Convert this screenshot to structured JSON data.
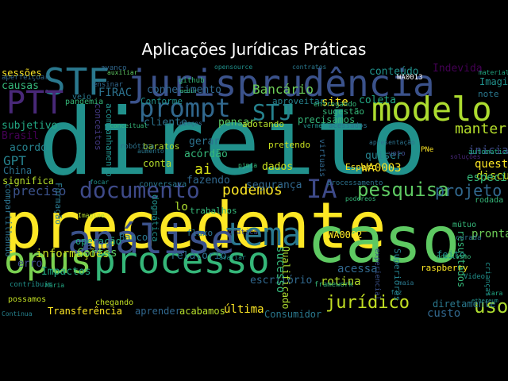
{
  "title": "Aplicações Jurídicas Práticas",
  "words": [
    {
      "text": "direito",
      "color": "#21918c"
    },
    {
      "text": "precedente",
      "color": "#fde725"
    },
    {
      "text": "caso",
      "color": "#5ec962"
    },
    {
      "text": "jurisprudência",
      "color": "#3b528b"
    },
    {
      "text": "modelo",
      "color": "#addc30"
    },
    {
      "text": "processo",
      "color": "#35b779"
    },
    {
      "text": "análise",
      "color": "#3b528b"
    },
    {
      "text": "opus",
      "color": "#7ad151"
    },
    {
      "text": "tema",
      "color": "#2a788e"
    },
    {
      "text": "STF",
      "color": "#2a788e"
    },
    {
      "text": "PTT",
      "color": "#482878"
    },
    {
      "text": "prompt",
      "color": "#31688e"
    },
    {
      "text": "documento",
      "color": "#3e4a89"
    },
    {
      "text": "pesquisa",
      "color": "#5ec962"
    },
    {
      "text": "STJ",
      "color": "#26828e"
    },
    {
      "text": "IA",
      "color": "#3e4a89"
    },
    {
      "text": "projeto",
      "color": "#31688e"
    },
    {
      "text": "jurídico",
      "color": "#c2df23"
    },
    {
      "text": "podemos",
      "color": "#fde725"
    },
    {
      "text": "uso",
      "color": "#addc30"
    },
    {
      "text": "manter",
      "color": "#b5de2b"
    },
    {
      "text": "Bancário",
      "color": "#6ece58"
    },
    {
      "text": "conhecimento",
      "color": "#31688e"
    },
    {
      "text": "GPT",
      "color": "#26828e"
    },
    {
      "text": "preciso",
      "color": "#3b528b"
    },
    {
      "text": "informações",
      "color": "#c8e020"
    },
    {
      "text": "sessões",
      "color": "#fde725"
    },
    {
      "text": "causas",
      "color": "#35b779"
    },
    {
      "text": "subjetivo",
      "color": "#22a884"
    },
    {
      "text": "Brasil",
      "color": "#440154"
    },
    {
      "text": "acordo",
      "color": "#26828e"
    },
    {
      "text": "China",
      "color": "#2c728e"
    },
    {
      "text": "significa",
      "color": "#b5de2b"
    },
    {
      "text": "FIRAC",
      "color": "#2c728e"
    },
    {
      "text": "conceitos",
      "color": "#443983"
    },
    {
      "text": "acompanhamento",
      "color": "#21918c"
    },
    {
      "text": "Cortes",
      "color": "#5ec962"
    },
    {
      "text": "operação",
      "color": "#22a884"
    },
    {
      "text": "alto",
      "color": "#3b528b"
    },
    {
      "text": "Impactos",
      "color": "#22a884"
    },
    {
      "text": "erro",
      "color": "#3e4a89"
    },
    {
      "text": "possamos",
      "color": "#c2df23"
    },
    {
      "text": "Transferência",
      "color": "#fde725"
    },
    {
      "text": "chegando",
      "color": "#c2df23"
    },
    {
      "text": "aprender",
      "color": "#31688e"
    },
    {
      "text": "acabamos",
      "color": "#b5de2b"
    },
    {
      "text": "última",
      "color": "#fde725"
    },
    {
      "text": "Consumidor",
      "color": "#2a788e"
    },
    {
      "text": "relatório",
      "color": "#2c728e"
    },
    {
      "text": "escritório",
      "color": "#31688e"
    },
    {
      "text": "segurança",
      "color": "#31688e"
    },
    {
      "text": "Qualificado",
      "color": "#addc30"
    },
    {
      "text": "sucesso",
      "color": "#35b779"
    },
    {
      "text": "acessa",
      "color": "#31688e"
    },
    {
      "text": "rotina",
      "color": "#b5de2b"
    },
    {
      "text": "WA0002",
      "color": "#fde725"
    },
    {
      "text": "diretamente",
      "color": "#2a788e"
    },
    {
      "text": "custo",
      "color": "#31688e"
    },
    {
      "text": "resultados",
      "color": "#35b779"
    },
    {
      "text": "pronta",
      "color": "#6ece58"
    },
    {
      "text": "feito",
      "color": "#21918c"
    },
    {
      "text": "questões",
      "color": "#fde725"
    },
    {
      "text": "discussão",
      "color": "#c8e020"
    },
    {
      "text": "específico",
      "color": "#35b779"
    },
    {
      "text": "inicial",
      "color": "#3e4a89"
    },
    {
      "text": "WA0003",
      "color": "#fde725"
    },
    {
      "text": "quiser",
      "color": "#26828e"
    },
    {
      "text": "Espero",
      "color": "#fde725"
    },
    {
      "text": "dados",
      "color": "#c8e020"
    },
    {
      "text": "ai",
      "color": "#d8e219"
    },
    {
      "text": "conta",
      "color": "#b5de2b"
    },
    {
      "text": "fazendo",
      "color": "#31688e"
    },
    {
      "text": "gerar",
      "color": "#2c728e"
    },
    {
      "text": "acórdão",
      "color": "#35b779"
    },
    {
      "text": "baratos",
      "color": "#addc30"
    },
    {
      "text": "cliente",
      "color": "#2c728e"
    },
    {
      "text": "pensar",
      "color": "#5ec962"
    },
    {
      "text": "adotando",
      "color": "#b5de2b"
    },
    {
      "text": "pretendo",
      "color": "#c8e020"
    },
    {
      "text": "precisamos",
      "color": "#35b779"
    },
    {
      "text": "sugestão",
      "color": "#35b779"
    },
    {
      "text": "site",
      "color": "#fde725"
    },
    {
      "text": "coleta",
      "color": "#22a884"
    },
    {
      "text": "conteúdo",
      "color": "#21918c"
    },
    {
      "text": "Indevida",
      "color": "#440154"
    },
    {
      "text": "Imagina",
      "color": "#21918c"
    },
    {
      "text": "note",
      "color": "#2a788e"
    },
    {
      "text": "aproveitar",
      "color": "#26828e"
    },
    {
      "text": "Conforme",
      "color": "#21918c"
    },
    {
      "text": "dogmática",
      "color": "#21918c"
    },
    {
      "text": "Banco",
      "color": "#2a788e"
    },
    {
      "text": "fluxo",
      "color": "#2a788e"
    },
    {
      "text": "lo",
      "color": "#addc30"
    },
    {
      "text": "Formação",
      "color": "#2a788e"
    },
    {
      "text": "compartilhando",
      "color": "#2c728e"
    },
    {
      "text": "conversava",
      "color": "#2a788e"
    },
    {
      "text": "WA0013",
      "color": "#ffffff"
    },
    {
      "text": "avanço",
      "color": "#31688e"
    },
    {
      "text": "aperfeiçoar",
      "color": "#31688e"
    },
    {
      "text": "pandemia",
      "color": "#35b779"
    },
    {
      "text": "ensinar",
      "color": "#31688e"
    },
    {
      "text": "veio",
      "color": "#2a788e"
    },
    {
      "text": "material",
      "color": "#22a884"
    },
    {
      "text": "automatizar",
      "color": "#22a884"
    },
    {
      "text": "rodada",
      "color": "#35b779"
    },
    {
      "text": "mútuo",
      "color": "#35b779"
    },
    {
      "text": "curada",
      "color": "#2c728e"
    },
    {
      "text": "Superiores",
      "color": "#26828e"
    },
    {
      "text": "experiencial",
      "color": "#3b528b"
    },
    {
      "text": "virtuais",
      "color": "#31688e"
    },
    {
      "text": "PNe",
      "color": "#fde725"
    },
    {
      "text": "raspberry",
      "color": "#fde725"
    },
    {
      "text": "Continua",
      "color": "#26828e"
    },
    {
      "text": "cara",
      "color": "#22a884"
    },
    {
      "text": "contribuir",
      "color": "#21918c"
    },
    {
      "text": "Maria",
      "color": "#22a884"
    },
    {
      "text": "framework",
      "color": "#35b779"
    },
    {
      "text": "entregando",
      "color": "#35b779"
    },
    {
      "text": "podereos",
      "color": "#35b779"
    },
    {
      "text": "prática",
      "color": "#3e4a89"
    },
    {
      "text": "vermelho",
      "color": "#21918c"
    },
    {
      "text": "acessados",
      "color": "#2c728e"
    },
    {
      "text": "voto",
      "color": "#3e4a89"
    },
    {
      "text": "processamento",
      "color": "#2c728e"
    },
    {
      "text": "conceitual",
      "color": "#35b779"
    },
    {
      "text": "Imagine",
      "color": "#b5de2b"
    },
    {
      "text": "Video",
      "color": "#21918c"
    },
    {
      "text": "maia",
      "color": "#2a788e"
    },
    {
      "text": "ethereum",
      "color": "#21918c"
    },
    {
      "text": "opensource",
      "color": "#21918c"
    },
    {
      "text": "contratos",
      "color": "#2a788e"
    },
    {
      "text": "auxiliar",
      "color": "#5ec962"
    },
    {
      "text": "github",
      "color": "#35b779"
    },
    {
      "text": "medir",
      "color": "#35b779"
    },
    {
      "text": "preços",
      "color": "#31688e"
    },
    {
      "text": "robótica",
      "color": "#2c728e"
    },
    {
      "text": "aumento",
      "color": "#2a788e"
    },
    {
      "text": "trabalhos",
      "color": "#35b779"
    },
    {
      "text": "avaliar",
      "color": "#21918c"
    },
    {
      "text": "fiz",
      "color": "#26828e"
    },
    {
      "text": "crianças",
      "color": "#21918c"
    },
    {
      "text": "populismo",
      "color": "#35b779"
    },
    {
      "text": "focar",
      "color": "#21918c"
    },
    {
      "text": "soluções",
      "color": "#482878"
    },
    {
      "text": "apresentação",
      "color": "#2c728e"
    },
    {
      "text": "pjmia",
      "color": "#35b779"
    },
    {
      "text": "rejeito",
      "color": "#35b779"
    },
    {
      "text": "ferramenta",
      "color": "#31688e"
    }
  ]
}
